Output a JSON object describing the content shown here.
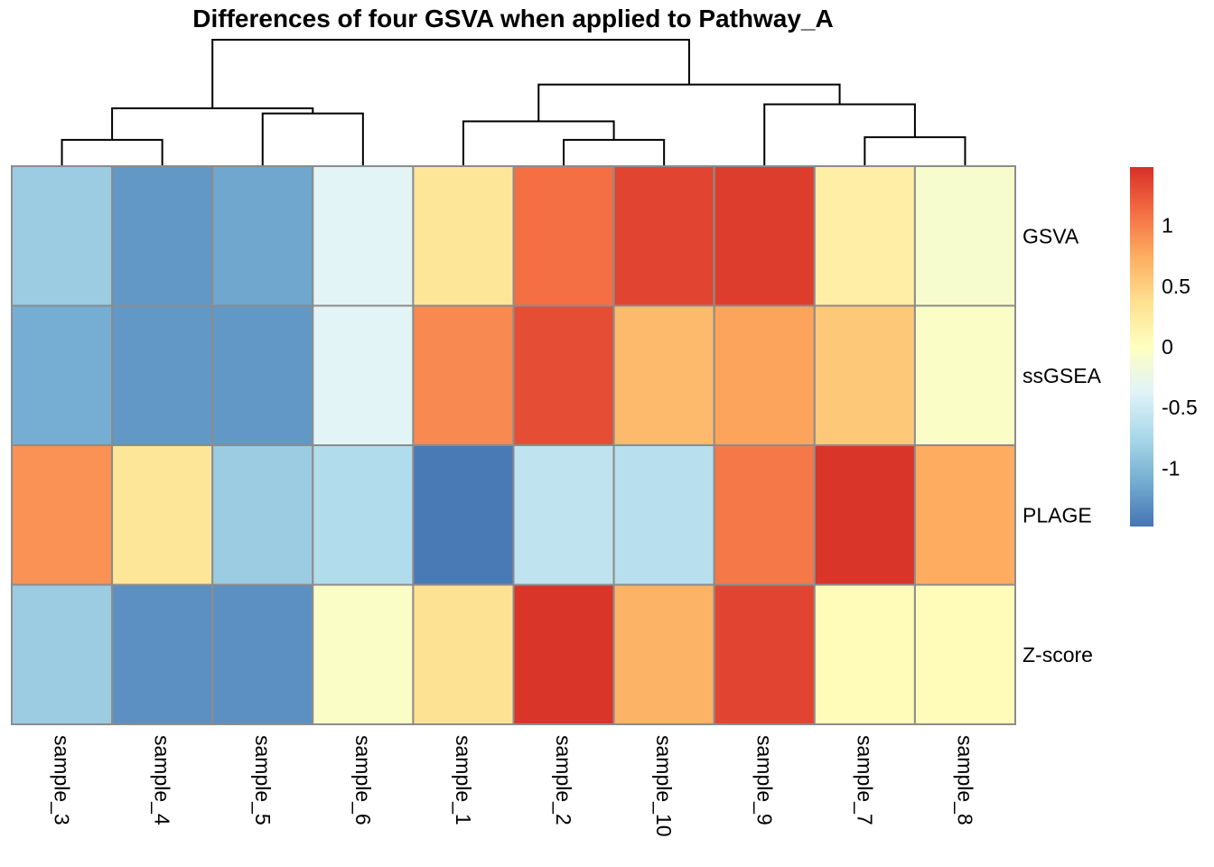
{
  "chart_data": {
    "type": "heatmap",
    "title": "Differences of four GSVA when applied to Pathway_A",
    "columns": [
      "sample_3",
      "sample_4",
      "sample_5",
      "sample_6",
      "sample_1",
      "sample_2",
      "sample_10",
      "sample_9",
      "sample_7",
      "sample_8"
    ],
    "rows": [
      "GSVA",
      "ssGSEA",
      "PLAGE",
      "Z-score"
    ],
    "values": [
      [
        -0.85,
        -1.25,
        -1.15,
        -0.35,
        0.3,
        1.1,
        1.35,
        1.4,
        0.2,
        -0.1
      ],
      [
        -1.1,
        -1.25,
        -1.25,
        -0.35,
        0.95,
        1.3,
        0.65,
        0.8,
        0.55,
        -0.05
      ],
      [
        0.9,
        0.3,
        -0.85,
        -0.7,
        -1.45,
        -0.6,
        -0.65,
        1.05,
        1.45,
        0.75
      ],
      [
        -0.85,
        -1.3,
        -1.3,
        -0.05,
        0.35,
        1.45,
        0.7,
        1.35,
        0.05,
        0.05
      ]
    ],
    "color_scale": {
      "name": "RdYlBu (reversed)",
      "min": -1.48,
      "max": 1.48,
      "stops": [
        "#4575B4",
        "#74ADD1",
        "#ABD9E9",
        "#E0F3F8",
        "#FFFFBF",
        "#FEE090",
        "#FDAE61",
        "#F46D43",
        "#D73027"
      ]
    },
    "legend": {
      "position": "right",
      "ticks": [
        1,
        0.5,
        0,
        -0.5,
        -1
      ],
      "tick_labels": [
        "1",
        "0.5",
        "0",
        "-0.5",
        "-1"
      ]
    },
    "column_dendrogram": {
      "merges": [
        {
          "left": "sample_3",
          "right": "sample_4",
          "height": 1.0
        },
        {
          "left": "sample_5",
          "right": "sample_6",
          "height": 2.0
        },
        {
          "left": "sample_2",
          "right": "sample_10",
          "height": 1.0
        },
        {
          "left": "sample_7",
          "right": "sample_8",
          "height": 1.1
        },
        {
          "left": "sample_1",
          "right": "m3",
          "height": 1.7
        },
        {
          "left": "m1",
          "right": "m2",
          "height": 2.2
        },
        {
          "left": "sample_9",
          "right": "m4",
          "height": 2.35
        },
        {
          "left": "m5",
          "right": "m7",
          "height": 3.1
        },
        {
          "left": "m6",
          "right": "m8",
          "height": 4.8
        }
      ]
    },
    "cell_border_color": "#8C8C8C",
    "grid": false
  }
}
